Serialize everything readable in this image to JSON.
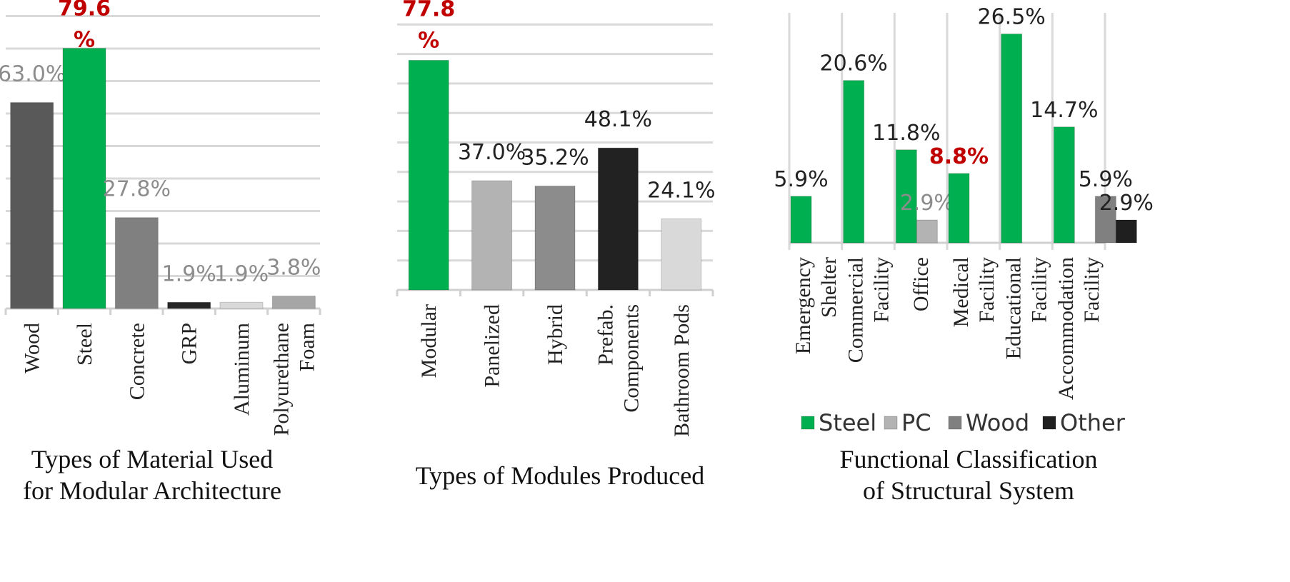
{
  "chart_data": [
    {
      "type": "bar",
      "title": "",
      "caption": [
        "Types of Material Used",
        "for Modular Architecture"
      ],
      "categories": [
        [
          "Wood"
        ],
        [
          "Steel"
        ],
        [
          "Concrete"
        ],
        [
          "GRP"
        ],
        [
          "Aluminum"
        ],
        [
          "Polyurethane",
          "Foam"
        ]
      ],
      "values": [
        63.0,
        79.6,
        27.8,
        1.9,
        1.9,
        3.8
      ],
      "value_labels": [
        [
          "63.0%"
        ],
        [
          "79.6",
          "%"
        ],
        [
          "27.8%"
        ],
        [
          "1.9%"
        ],
        [
          "1.9%"
        ],
        [
          "3.8%"
        ]
      ],
      "colors": [
        "#595959",
        "#00b050",
        "#808080",
        "#262626",
        "#d9d9d9",
        "#a6a6a6"
      ],
      "label_colors": [
        "#8c8c8c",
        "#c00000",
        "#8c8c8c",
        "#8c8c8c",
        "#8c8c8c",
        "#8c8c8c"
      ],
      "ylim": [
        0,
        90
      ],
      "grid": true
    },
    {
      "type": "bar",
      "title": "",
      "caption": [
        "Types of Modules Produced"
      ],
      "categories": [
        [
          "Modular"
        ],
        [
          "Panelized"
        ],
        [
          "Hybrid"
        ],
        [
          "Prefab.",
          "Components"
        ],
        [
          "Bathroom Pods"
        ]
      ],
      "values": [
        77.8,
        37.0,
        35.2,
        48.1,
        24.1
      ],
      "value_labels": [
        [
          "77.8",
          "%"
        ],
        [
          "37.0%"
        ],
        [
          "35.2%"
        ],
        [
          "48.1%"
        ],
        [
          "24.1%"
        ]
      ],
      "colors": [
        "#00b050",
        "#b3b3b3",
        "#8c8c8c",
        "#222222",
        "#d9d9d9"
      ],
      "label_colors": [
        "#c00000",
        "#222222",
        "#222222",
        "#222222",
        "#222222"
      ],
      "ylim": [
        0,
        90
      ],
      "grid": true
    },
    {
      "type": "bar",
      "title": "",
      "caption": [
        "Functional Classification",
        "of Structural System"
      ],
      "categories": [
        [
          "Emergency",
          "Shelter"
        ],
        [
          "Commercial",
          "Facility"
        ],
        [
          "Office"
        ],
        [
          "Medical",
          "Facility"
        ],
        [
          "Educational",
          "Facility"
        ],
        [
          "Accommodation",
          "Facility"
        ]
      ],
      "series": [
        {
          "name": "Steel",
          "color": "#00b050",
          "values": [
            5.9,
            20.6,
            11.8,
            8.8,
            26.5,
            14.7
          ],
          "labels": [
            "5.9%",
            "20.6%",
            "11.8%",
            "8.8%",
            "26.5%",
            "14.7%"
          ]
        },
        {
          "name": "PC",
          "color": "#b3b3b3",
          "values": [
            null,
            null,
            2.9,
            null,
            null,
            null
          ],
          "labels": [
            "",
            "",
            "2.9%",
            "",
            "",
            ""
          ]
        },
        {
          "name": "Wood",
          "color": "#808080",
          "values": [
            null,
            null,
            null,
            null,
            null,
            5.9
          ],
          "labels": [
            "",
            "",
            "",
            "",
            "",
            "5.9%"
          ]
        },
        {
          "name": "Other",
          "color": "#1f1f1f",
          "values": [
            null,
            null,
            null,
            null,
            null,
            2.9
          ],
          "labels": [
            "",
            "",
            "",
            "",
            "",
            "2.9%"
          ]
        }
      ],
      "highlight_color": "#c00000",
      "highlight_label": "8.8%",
      "ylim": [
        0,
        29
      ],
      "grid": "vertical",
      "legend": "bottom"
    }
  ]
}
